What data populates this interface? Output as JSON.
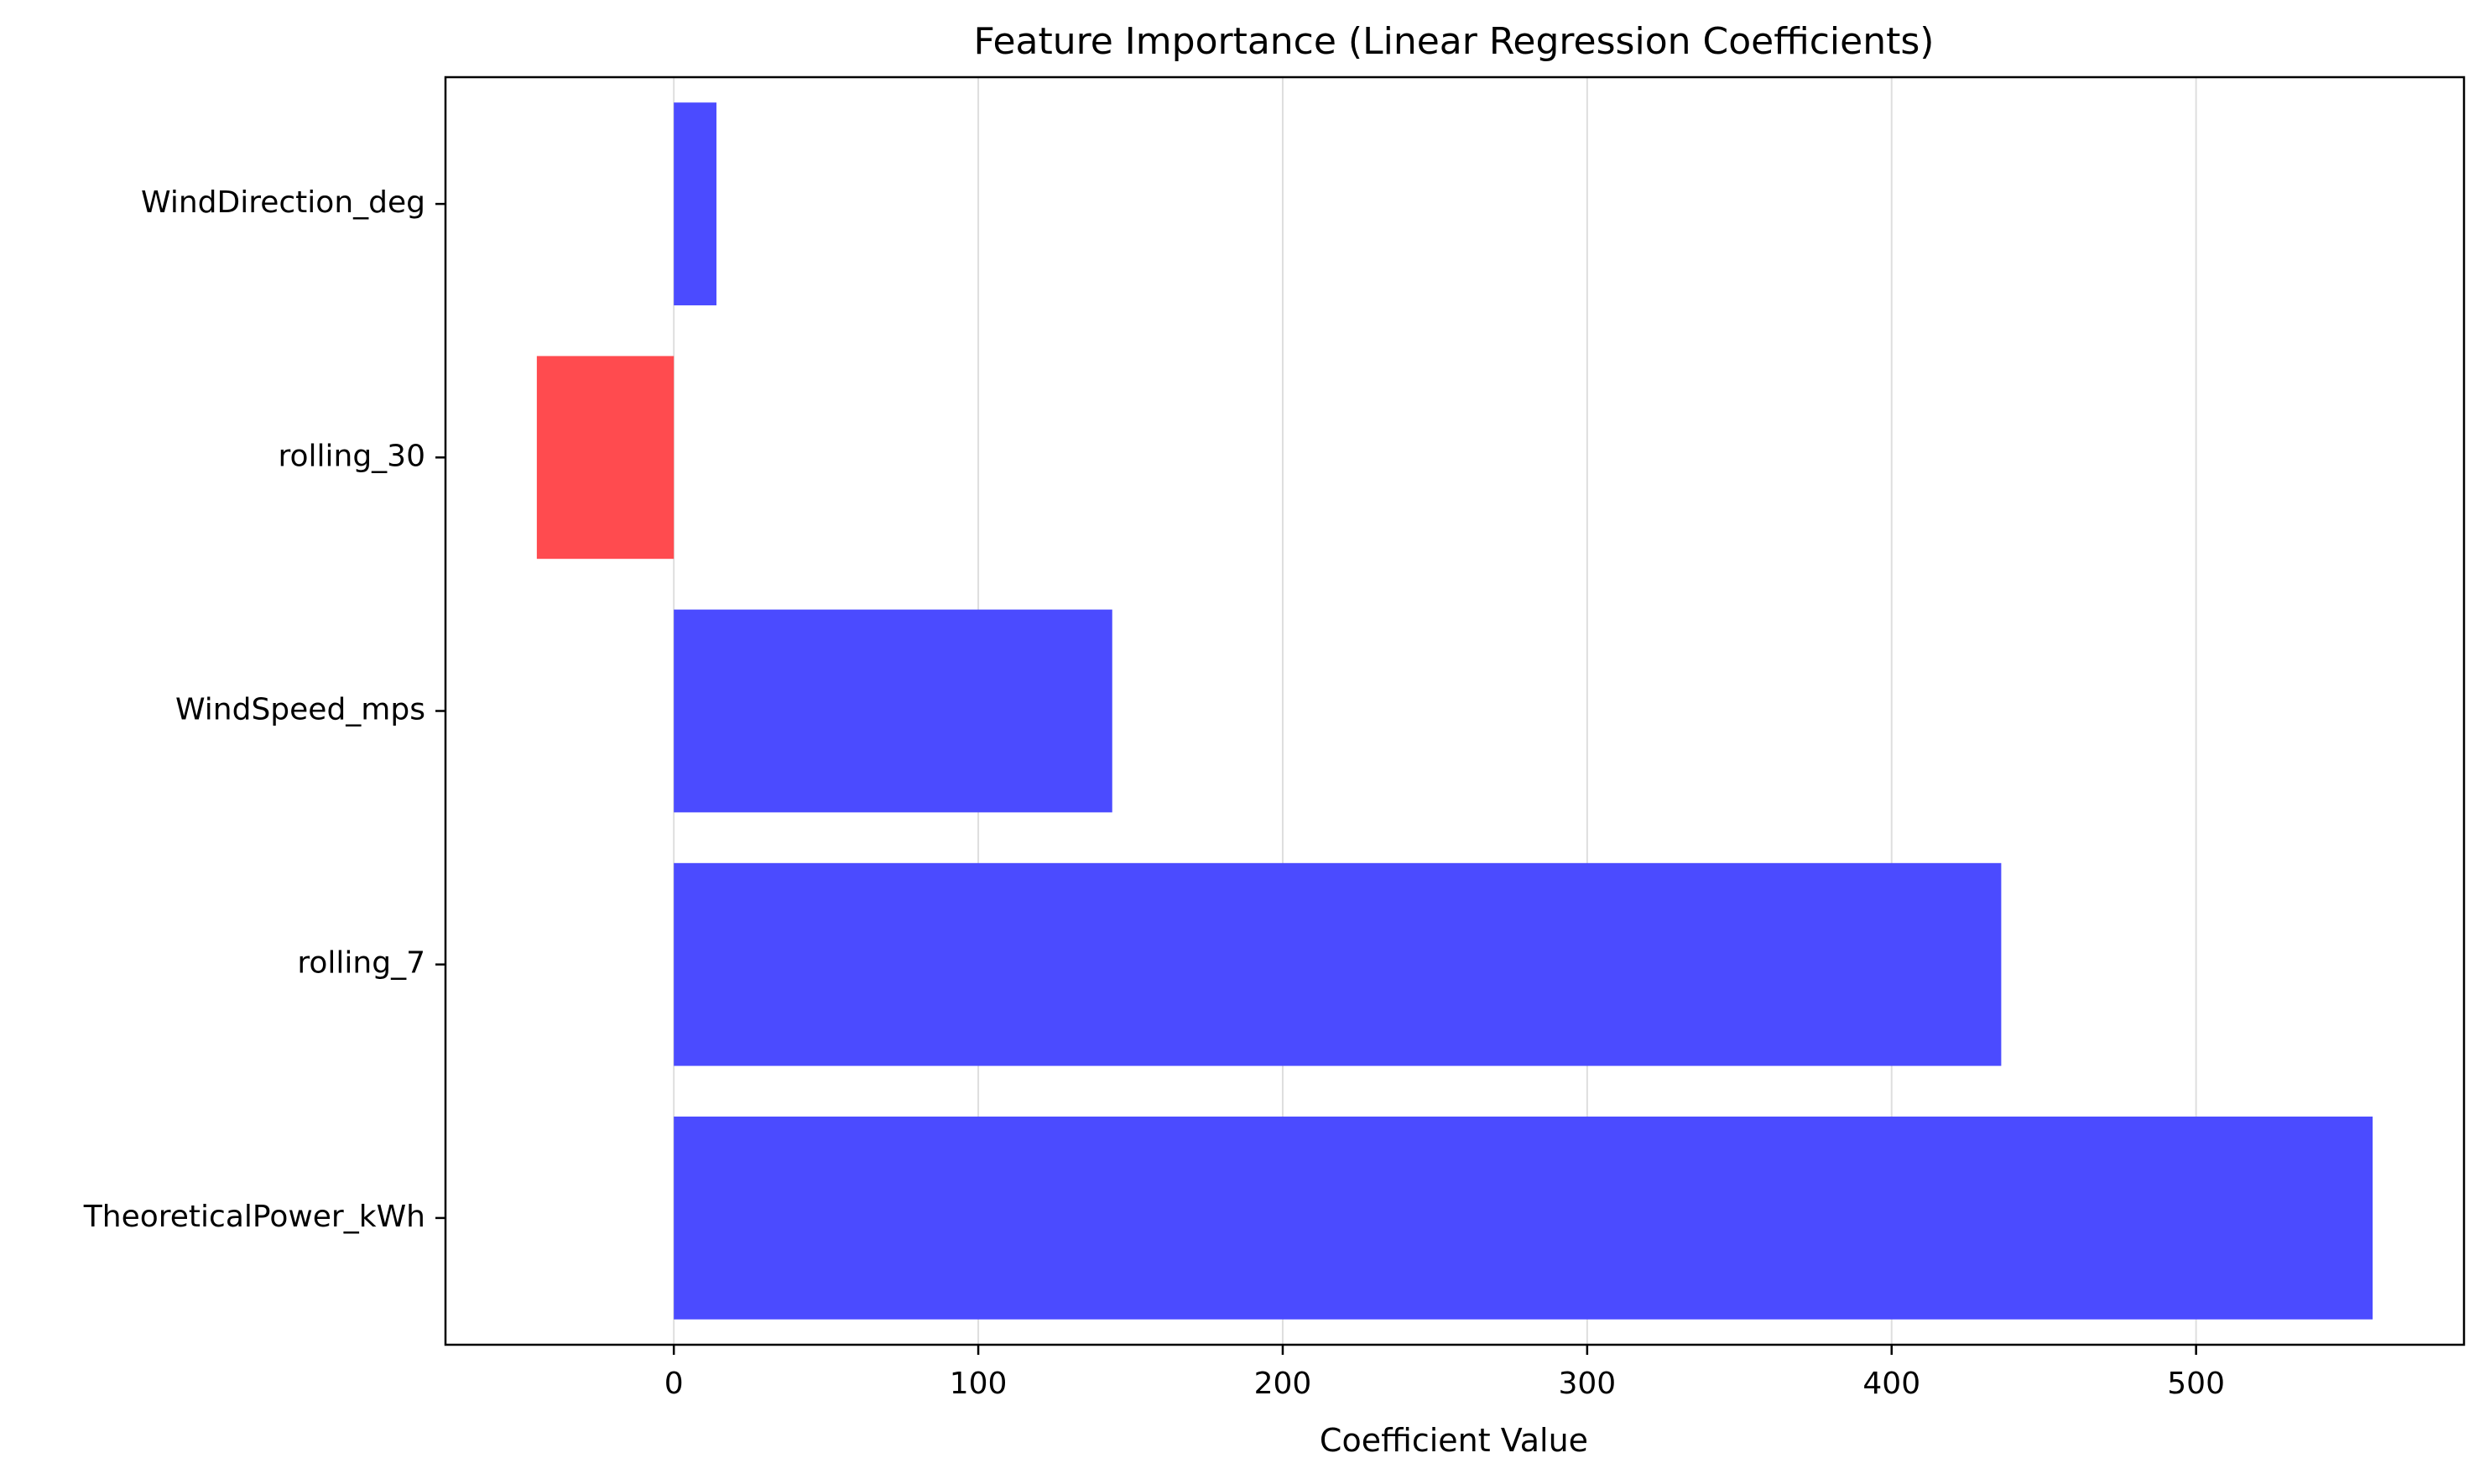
{
  "chart_data": {
    "type": "bar",
    "orientation": "horizontal",
    "title": "Feature Importance (Linear Regression Coefficients)",
    "xlabel": "Coefficient Value",
    "ylabel": "",
    "categories": [
      "WindDirection_deg",
      "rolling_30",
      "WindSpeed_mps",
      "rolling_7",
      "TheoreticalPower_kWh"
    ],
    "values": [
      14,
      -45,
      144,
      436,
      558
    ],
    "xlim": [
      -75,
      588
    ],
    "xticks": [
      0,
      100,
      200,
      300,
      400,
      500
    ],
    "xtick_labels": [
      "0",
      "100",
      "200",
      "300",
      "400",
      "500"
    ],
    "grid": "x-axis vertical lines",
    "legend": "none",
    "colors": {
      "positive": "#4b4bff",
      "negative": "#ff4b4f",
      "grid": "#dedede",
      "axes": "#000000"
    }
  }
}
